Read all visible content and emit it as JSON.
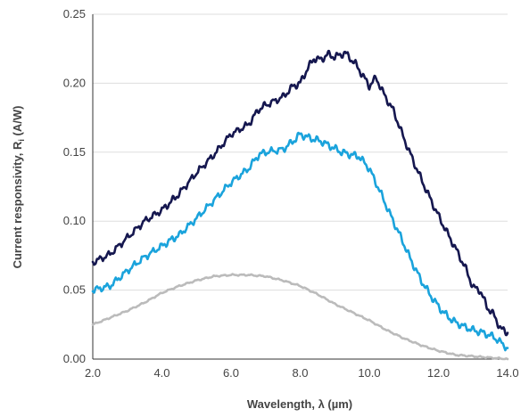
{
  "chart_data": {
    "type": "line",
    "title": "",
    "xlabel": "Wavelength, λ (µm)",
    "ylabel_main": "Current responsivity, R",
    "ylabel_sub": "i",
    "ylabel_unit": " (A/W)",
    "xlim": [
      2.0,
      14.0
    ],
    "ylim": [
      0.0,
      0.25
    ],
    "x_ticks": [
      "2.0",
      "4.0",
      "6.0",
      "8.0",
      "10.0",
      "12.0",
      "14.0"
    ],
    "y_ticks": [
      "0.00",
      "0.05",
      "0.10",
      "0.15",
      "0.20",
      "0.25"
    ],
    "grid": "horizontal",
    "legend": "none",
    "series": [
      {
        "color": "#15174f",
        "x": [
          2.0,
          2.5,
          3.0,
          3.5,
          4.0,
          4.3,
          4.5,
          5.0,
          5.5,
          6.0,
          6.5,
          6.8,
          7.0,
          7.5,
          7.8,
          8.0,
          8.2,
          8.4,
          8.6,
          8.8,
          9.0,
          9.3,
          9.6,
          9.8,
          10.0,
          10.2,
          10.4,
          10.7,
          11.0,
          11.3,
          11.6,
          11.9,
          12.2,
          12.5,
          12.8,
          13.0,
          13.2,
          13.4,
          13.6,
          13.8,
          14.0
        ],
        "y": [
          0.07,
          0.076,
          0.088,
          0.1,
          0.108,
          0.115,
          0.12,
          0.135,
          0.148,
          0.163,
          0.17,
          0.181,
          0.184,
          0.19,
          0.198,
          0.2,
          0.21,
          0.218,
          0.217,
          0.221,
          0.219,
          0.222,
          0.214,
          0.206,
          0.198,
          0.204,
          0.193,
          0.18,
          0.16,
          0.142,
          0.125,
          0.109,
          0.094,
          0.08,
          0.065,
          0.052,
          0.05,
          0.038,
          0.032,
          0.022,
          0.019
        ]
      },
      {
        "color": "#1aa3dc",
        "x": [
          2.0,
          2.5,
          3.0,
          3.5,
          4.0,
          4.3,
          4.5,
          5.0,
          5.5,
          6.0,
          6.5,
          6.8,
          7.0,
          7.5,
          7.8,
          8.0,
          8.3,
          8.6,
          8.9,
          9.2,
          9.5,
          9.7,
          10.0,
          10.3,
          10.6,
          10.9,
          11.2,
          11.5,
          11.8,
          12.1,
          12.4,
          12.7,
          13.0,
          13.3,
          13.6,
          14.0
        ],
        "y": [
          0.05,
          0.053,
          0.064,
          0.074,
          0.082,
          0.087,
          0.09,
          0.102,
          0.115,
          0.128,
          0.138,
          0.148,
          0.15,
          0.152,
          0.158,
          0.163,
          0.16,
          0.158,
          0.154,
          0.15,
          0.148,
          0.147,
          0.138,
          0.122,
          0.105,
          0.089,
          0.072,
          0.057,
          0.045,
          0.035,
          0.028,
          0.024,
          0.021,
          0.019,
          0.016,
          0.008
        ]
      },
      {
        "color": "#bbbbbb",
        "x": [
          2.0,
          2.5,
          3.0,
          3.5,
          4.0,
          4.5,
          5.0,
          5.5,
          6.0,
          6.5,
          7.0,
          7.5,
          8.0,
          8.5,
          9.0,
          9.5,
          10.0,
          10.5,
          11.0,
          11.5,
          12.0,
          12.5,
          13.0,
          13.5,
          14.0
        ],
        "y": [
          0.025,
          0.03,
          0.035,
          0.041,
          0.048,
          0.053,
          0.057,
          0.06,
          0.061,
          0.061,
          0.06,
          0.057,
          0.053,
          0.047,
          0.04,
          0.034,
          0.028,
          0.021,
          0.015,
          0.01,
          0.006,
          0.003,
          0.002,
          0.001,
          0.0
        ]
      }
    ]
  }
}
